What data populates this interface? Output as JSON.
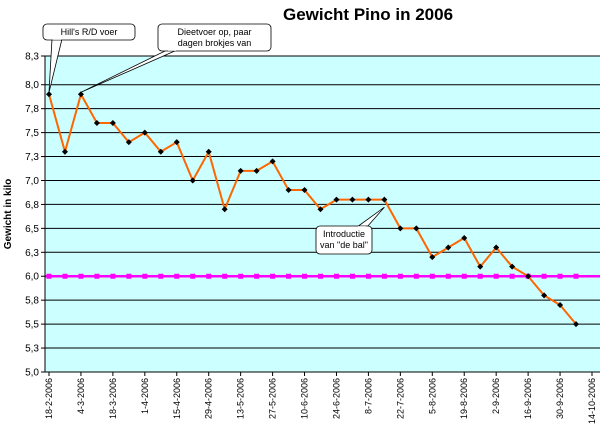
{
  "chart_data": {
    "type": "line",
    "title": "Gewicht Pino in 2006",
    "ylabel": "Gewicht in kilo",
    "xlabel": "",
    "ylim": [
      5.0,
      8.3
    ],
    "y_ticks": [
      "8,3",
      "8,0",
      "7,8",
      "7,5",
      "7,3",
      "7,0",
      "6,8",
      "6,5",
      "6,3",
      "6,0",
      "5,8",
      "5,5",
      "5,3",
      "5,0"
    ],
    "y_tick_values": [
      8.3,
      8.0,
      7.75,
      7.5,
      7.25,
      7.0,
      6.75,
      6.5,
      6.25,
      6.0,
      5.75,
      5.5,
      5.25,
      5.0
    ],
    "x_ticks": [
      "18-2-2006",
      "4-3-2006",
      "18-3-2006",
      "1-4-2006",
      "15-4-2006",
      "29-4-2006",
      "13-5-2006",
      "27-5-2006",
      "10-6-2006",
      "24-6-2006",
      "8-7-2006",
      "22-7-2006",
      "5-8-2006",
      "19-8-2006",
      "2-9-2006",
      "16-9-2006",
      "30-9-2006",
      "14-10-2006"
    ],
    "x_range": [
      "2006-02-18",
      "2006-10-14"
    ],
    "series": [
      {
        "name": "",
        "color": "#ff6600",
        "marker_color": "#000000",
        "points": [
          {
            "x": "2006-02-18",
            "y": 7.9
          },
          {
            "x": "2006-02-25",
            "y": 7.3
          },
          {
            "x": "2006-03-04",
            "y": 7.9
          },
          {
            "x": "2006-03-11",
            "y": 7.6
          },
          {
            "x": "2006-03-18",
            "y": 7.6
          },
          {
            "x": "2006-03-25",
            "y": 7.4
          },
          {
            "x": "2006-04-01",
            "y": 7.5
          },
          {
            "x": "2006-04-08",
            "y": 7.3
          },
          {
            "x": "2006-04-15",
            "y": 7.4
          },
          {
            "x": "2006-04-22",
            "y": 7.0
          },
          {
            "x": "2006-04-29",
            "y": 7.3
          },
          {
            "x": "2006-05-06",
            "y": 6.7
          },
          {
            "x": "2006-05-13",
            "y": 7.1
          },
          {
            "x": "2006-05-20",
            "y": 7.1
          },
          {
            "x": "2006-05-27",
            "y": 7.2
          },
          {
            "x": "2006-06-03",
            "y": 6.9
          },
          {
            "x": "2006-06-10",
            "y": 6.9
          },
          {
            "x": "2006-06-17",
            "y": 6.7
          },
          {
            "x": "2006-06-24",
            "y": 6.8
          },
          {
            "x": "2006-07-01",
            "y": 6.8
          },
          {
            "x": "2006-07-08",
            "y": 6.8
          },
          {
            "x": "2006-07-15",
            "y": 6.8
          },
          {
            "x": "2006-07-22",
            "y": 6.5
          },
          {
            "x": "2006-07-29",
            "y": 6.5
          },
          {
            "x": "2006-08-05",
            "y": 6.2
          },
          {
            "x": "2006-08-12",
            "y": 6.3
          },
          {
            "x": "2006-08-19",
            "y": 6.4
          },
          {
            "x": "2006-08-26",
            "y": 6.1
          },
          {
            "x": "2006-09-02",
            "y": 6.3
          },
          {
            "x": "2006-09-09",
            "y": 6.1
          },
          {
            "x": "2006-09-16",
            "y": 6.0
          },
          {
            "x": "2006-09-23",
            "y": 5.8
          },
          {
            "x": "2006-09-30",
            "y": 5.7
          },
          {
            "x": "2006-10-07",
            "y": 5.5
          }
        ]
      }
    ],
    "reference_line": {
      "y": 6.0,
      "color": "#ff00ff"
    },
    "grid": true,
    "plot_background": "#ccffff",
    "annotations": [
      {
        "text_lines": [
          "Hill's R/D voer"
        ],
        "target_date": "2006-02-18",
        "target_y": 7.9
      },
      {
        "text_lines": [
          "Dieetvoer op, paar",
          "dagen brokjes van"
        ],
        "target_date": "2006-03-04",
        "target_y": 7.9
      },
      {
        "text_lines": [
          "Introductie",
          "van \"de bal\""
        ],
        "target_date": "2006-07-15",
        "target_y": 6.7
      }
    ],
    "legend": "none"
  }
}
